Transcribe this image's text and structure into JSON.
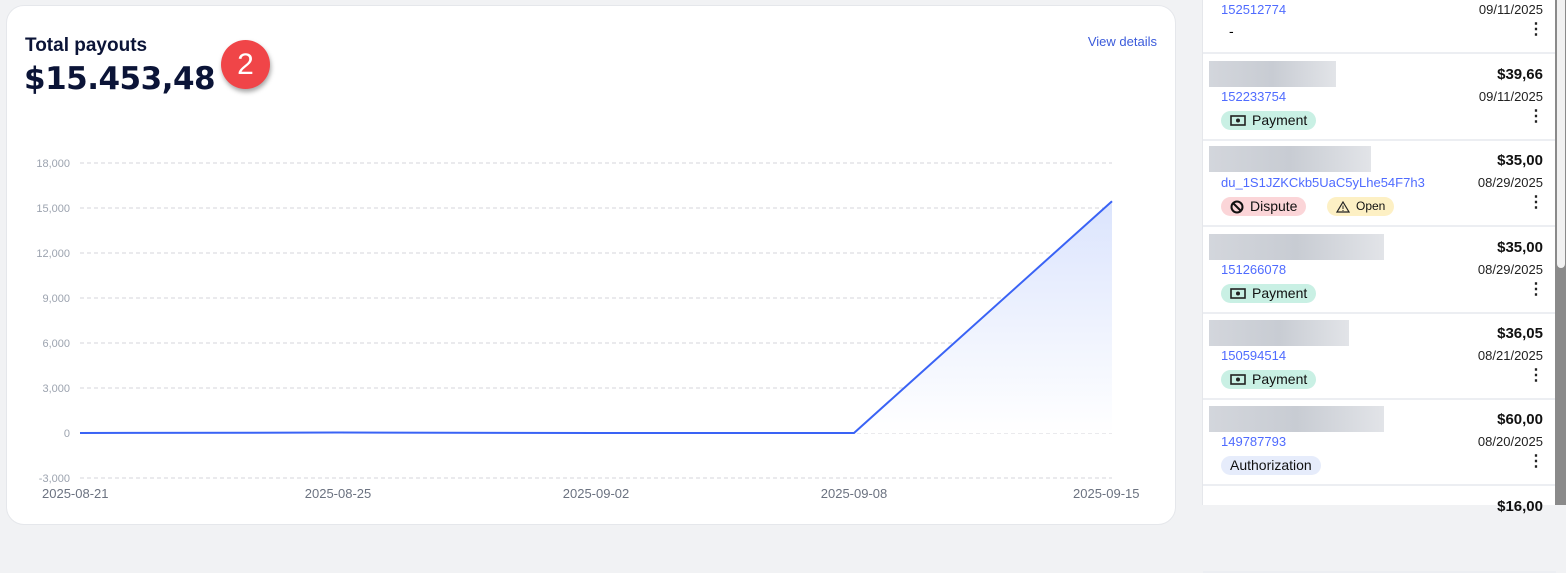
{
  "card": {
    "title": "Total payouts",
    "total": "$15.453,48",
    "step_badge": "2",
    "view_details": "View details"
  },
  "chart_data": {
    "type": "area",
    "x": [
      "2025-08-21",
      "2025-08-25",
      "2025-09-02",
      "2025-09-08",
      "2025-09-15"
    ],
    "series": [
      {
        "values": [
          0,
          30,
          0,
          0,
          15453.48
        ]
      }
    ],
    "y_ticks": [
      "18,000",
      "15,000",
      "12,000",
      "9,000",
      "6,000",
      "3,000",
      "0",
      "-3,000"
    ],
    "ylim": [
      -3000,
      18000
    ],
    "grid": true,
    "line_color": "#3a63f5",
    "fill_color": "#dbe4fd"
  },
  "transactions": [
    {
      "id": "152512774",
      "amount": "",
      "date": "09/11/2025",
      "tags": [
        {
          "label": "-",
          "kind": "none"
        }
      ]
    },
    {
      "id": "152233754",
      "amount": "$39,66",
      "date": "09/11/2025",
      "tags": [
        {
          "label": "Payment",
          "kind": "pay",
          "icon": "cash-icon"
        }
      ]
    },
    {
      "id": "du_1S1JZKCkb5UaC5yLhe54F7h3",
      "amount": "$35,00",
      "date": "08/29/2025",
      "tags": [
        {
          "label": "Dispute",
          "kind": "dis",
          "icon": "ban-icon"
        },
        {
          "label": "Open",
          "kind": "open",
          "icon": "warning-icon"
        }
      ]
    },
    {
      "id": "151266078",
      "amount": "$35,00",
      "date": "08/29/2025",
      "tags": [
        {
          "label": "Payment",
          "kind": "pay",
          "icon": "cash-icon"
        }
      ]
    },
    {
      "id": "150594514",
      "amount": "$36,05",
      "date": "08/21/2025",
      "tags": [
        {
          "label": "Payment",
          "kind": "pay",
          "icon": "cash-icon"
        }
      ]
    },
    {
      "id": "149787793",
      "amount": "$60,00",
      "date": "08/20/2025",
      "tags": [
        {
          "label": "Authorization",
          "kind": "auth"
        }
      ]
    },
    {
      "id": "",
      "amount": "$16,00",
      "date": "",
      "tags": []
    }
  ]
}
